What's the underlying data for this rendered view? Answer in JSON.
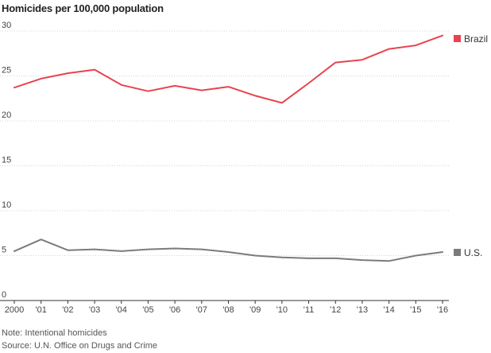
{
  "title": "Homicides per 100,000 population",
  "note": "Note: Intentional homicides",
  "source": "Source: U.N. Office on Drugs and Crime",
  "chart_data": {
    "type": "line",
    "title": "Homicides per 100,000 population",
    "x_tick_labels": [
      "2000",
      "'01",
      "'02",
      "'03",
      "'04",
      "'05",
      "'06",
      "'07",
      "'08",
      "'09",
      "'10",
      "'11",
      "'12",
      "'13",
      "'14",
      "'15",
      "'16"
    ],
    "x": [
      2000,
      2001,
      2002,
      2003,
      2004,
      2005,
      2006,
      2007,
      2008,
      2009,
      2010,
      2011,
      2012,
      2013,
      2014,
      2015,
      2016
    ],
    "ylim": [
      0,
      30
    ],
    "yticks": [
      0,
      5,
      10,
      15,
      20,
      25,
      30
    ],
    "grid": true,
    "legend": "inline-right",
    "series": [
      {
        "name": "Brazil",
        "color": "#e8434f",
        "values": [
          23.7,
          24.7,
          25.3,
          25.7,
          24.0,
          23.3,
          23.9,
          23.4,
          23.8,
          22.8,
          22.0,
          24.2,
          26.5,
          26.8,
          28.0,
          28.4,
          29.5
        ]
      },
      {
        "name": "U.S.",
        "color": "#7b7b7b",
        "values": [
          5.5,
          6.8,
          5.6,
          5.7,
          5.5,
          5.7,
          5.8,
          5.7,
          5.4,
          5.0,
          4.8,
          4.7,
          4.7,
          4.5,
          4.4,
          5.0,
          5.4
        ]
      }
    ]
  }
}
